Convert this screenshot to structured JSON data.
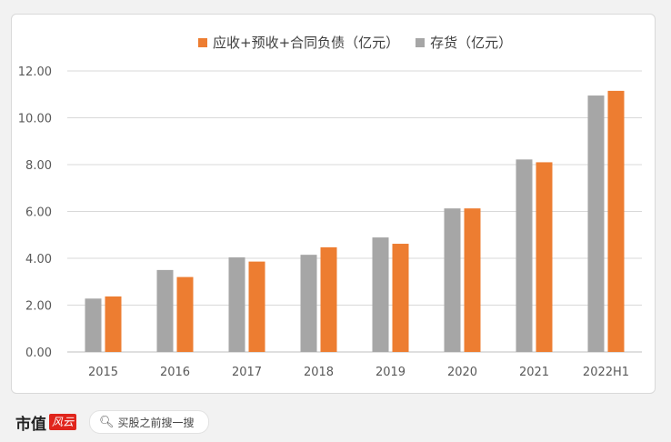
{
  "chart_data": {
    "type": "bar",
    "categories": [
      "2015",
      "2016",
      "2017",
      "2018",
      "2019",
      "2020",
      "2021",
      "2022H1"
    ],
    "series": [
      {
        "name": "存货（亿元）",
        "color": "#a6a6a6",
        "values": [
          2.28,
          3.5,
          4.04,
          4.15,
          4.89,
          6.13,
          8.22,
          10.95
        ]
      },
      {
        "name": "应收+预收+合同负债（亿元）",
        "color": "#ed7d31",
        "values": [
          2.37,
          3.2,
          3.86,
          4.47,
          4.62,
          6.13,
          8.1,
          11.15
        ]
      }
    ],
    "ylim": [
      0,
      12
    ],
    "yticks": [
      "0.00",
      "2.00",
      "4.00",
      "6.00",
      "8.00",
      "10.00",
      "12.00"
    ],
    "grid": true,
    "legend_position": "top"
  },
  "legend": {
    "orange_label": "应收+预收+合同负债（亿元）",
    "gray_label": "存货（亿元）",
    "orange_color": "#ed7d31",
    "gray_color": "#a6a6a6"
  },
  "footer": {
    "brand_text": "市值",
    "brand_logo_text": "风云",
    "search_placeholder": "买股之前搜一搜"
  },
  "watermark": "市值风云"
}
